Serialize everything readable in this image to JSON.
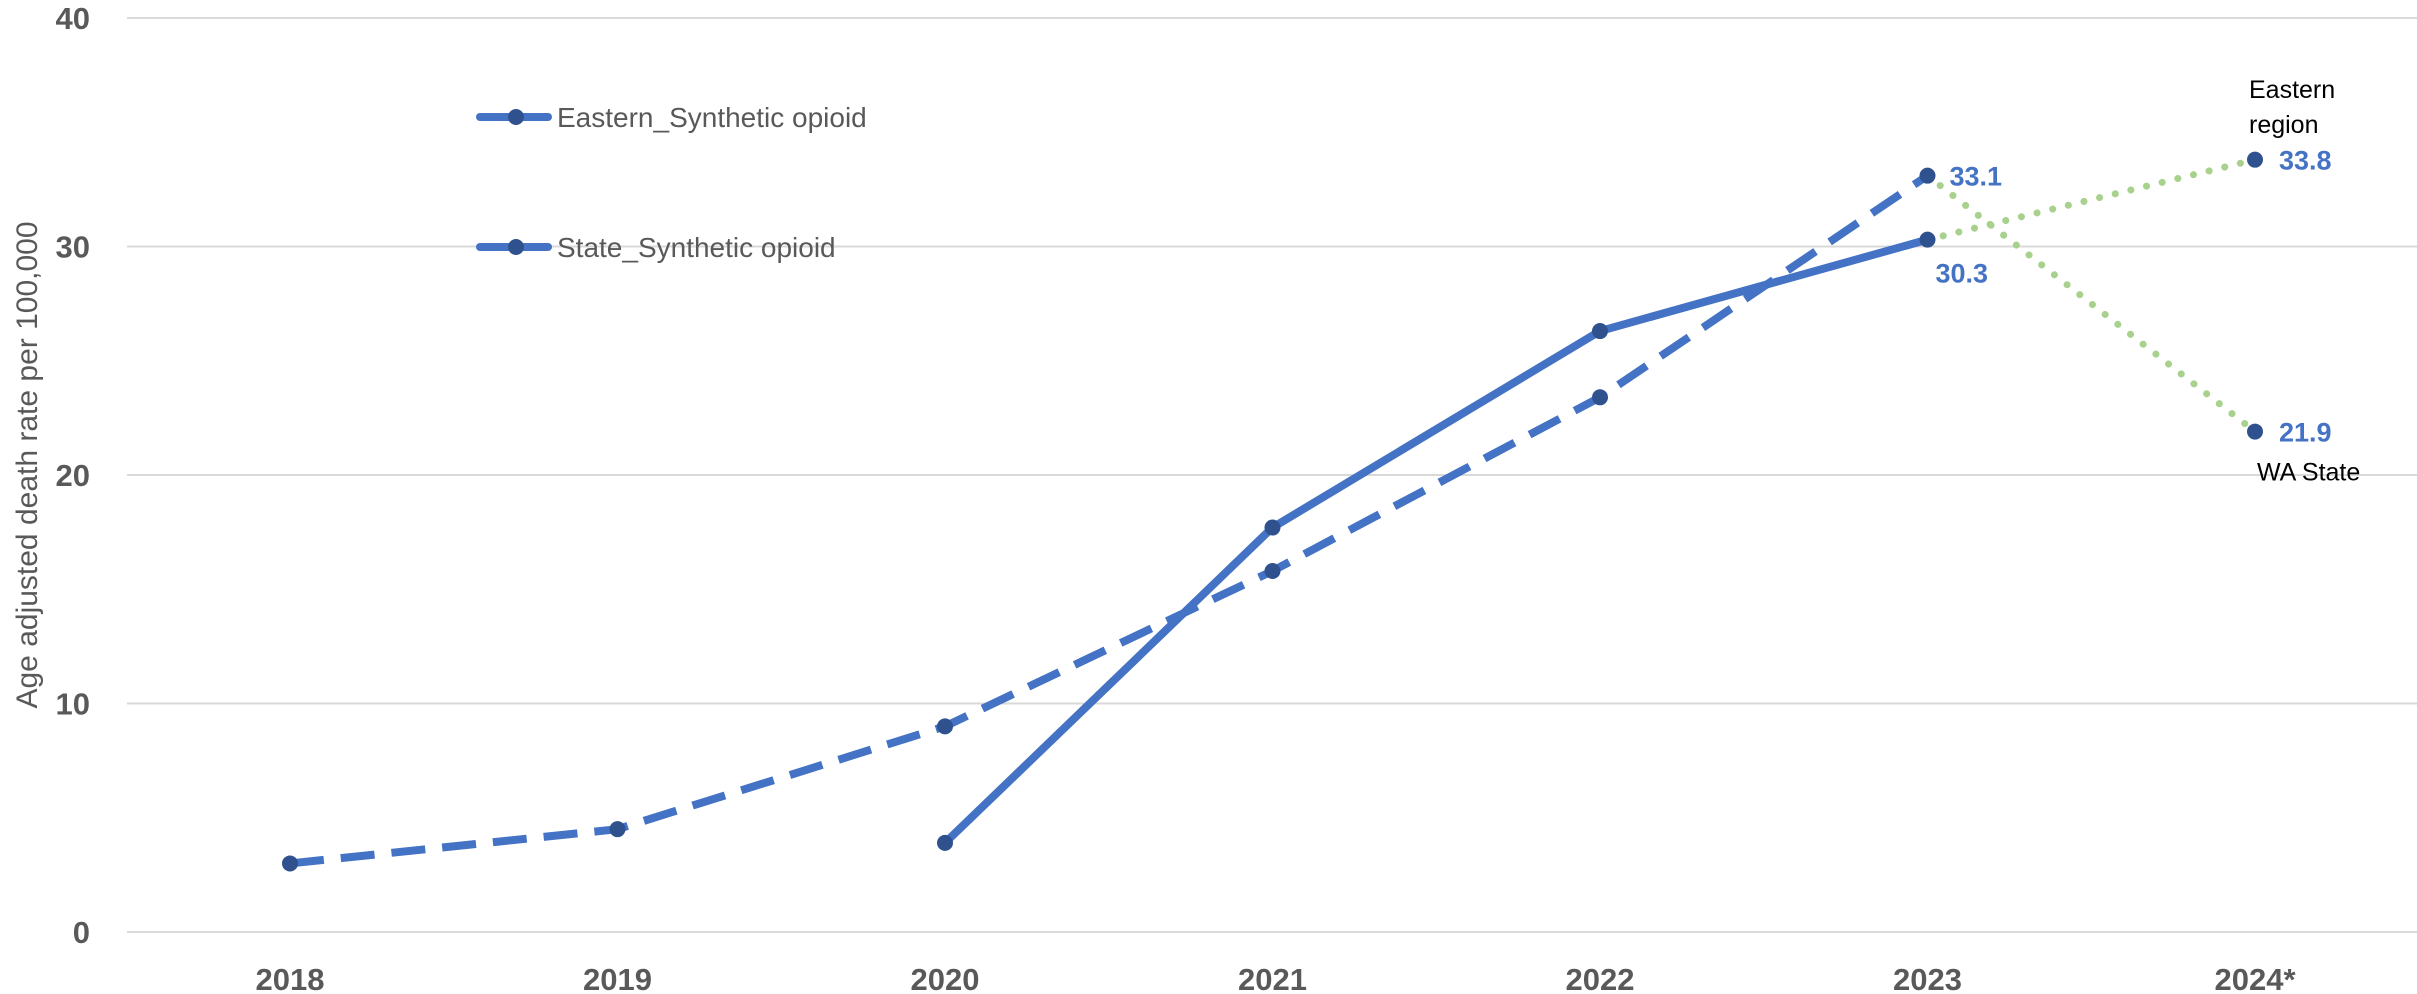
{
  "chart_data": {
    "type": "line",
    "categories": [
      "2018",
      "2019",
      "2020",
      "2021",
      "2022",
      "2023",
      "2024*"
    ],
    "ylabel": "Age adjusted death rate per 100,000",
    "ylim": [
      0,
      40
    ],
    "yticks": [
      0,
      10,
      20,
      30,
      40
    ],
    "grid": true,
    "legend_position": "top-left",
    "colors": {
      "series": "#4472C4",
      "marker": "#2F528F",
      "projection": "#A9D18E",
      "grid": "#D9D9D9",
      "axis_text": "#595959"
    },
    "series": [
      {
        "name": "Eastern_Synthetic opioid",
        "style": "solid",
        "values": [
          null,
          null,
          3.9,
          17.7,
          26.3,
          30.3,
          null
        ]
      },
      {
        "name": "State_Synthetic opioid",
        "style": "dashed",
        "values": [
          3.0,
          4.5,
          9.0,
          15.8,
          23.4,
          33.1,
          null
        ]
      }
    ],
    "projections": [
      {
        "from": 30.3,
        "to": 33.8,
        "label": "33.8",
        "annotation": "Eastern region"
      },
      {
        "from": 33.1,
        "to": 21.9,
        "label": "21.9",
        "annotation": "WA State"
      }
    ],
    "data_labels": [
      "33.1",
      "30.3",
      "33.8",
      "21.9"
    ],
    "annotations": {
      "eastern": [
        "Eastern",
        "region"
      ],
      "state": "WA State"
    }
  }
}
